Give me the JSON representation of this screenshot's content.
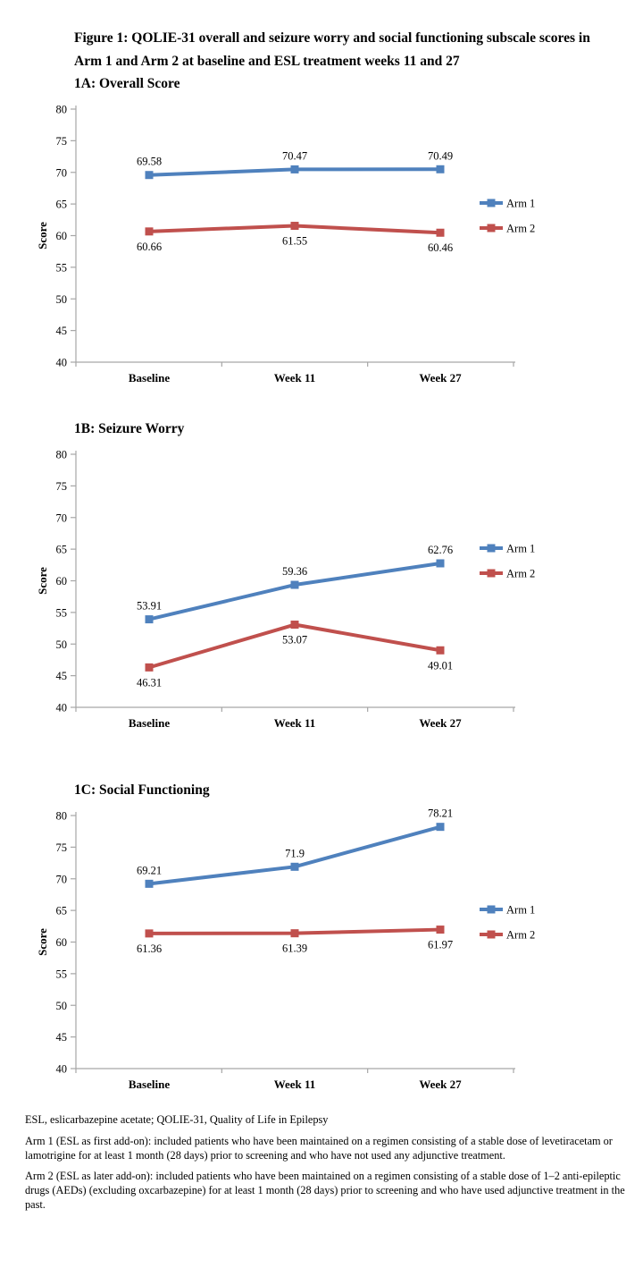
{
  "figure_title": "Figure 1: QOLIE-31 overall and seizure worry and social functioning subscale scores in Arm 1 and Arm 2 at baseline and ESL treatment weeks 11 and 27",
  "colors": {
    "arm1": "#4f81bd",
    "arm2": "#c0504d",
    "axis": "#a6a6a6",
    "text": "#000000"
  },
  "chart_data": [
    {
      "type": "line",
      "title": "1A: Overall Score",
      "categories": [
        "Baseline",
        "Week 11",
        "Week 27"
      ],
      "xlabel": "",
      "ylabel": "Score",
      "ylim": [
        40,
        80
      ],
      "ytick_step": 5,
      "grid": false,
      "legend_position": "right",
      "series": [
        {
          "name": "Arm 1",
          "color": "#4f81bd",
          "values": [
            69.58,
            70.47,
            70.49
          ],
          "labels": [
            "69.58",
            "70.47",
            "70.49"
          ],
          "label_side": "above"
        },
        {
          "name": "Arm 2",
          "color": "#c0504d",
          "values": [
            60.66,
            61.55,
            60.46
          ],
          "labels": [
            "60.66",
            "61.55",
            "60.46"
          ],
          "label_side": "below"
        }
      ]
    },
    {
      "type": "line",
      "title": "1B: Seizure Worry",
      "categories": [
        "Baseline",
        "Week 11",
        "Week 27"
      ],
      "xlabel": "",
      "ylabel": "Score",
      "ylim": [
        40,
        80
      ],
      "ytick_step": 5,
      "grid": false,
      "legend_position": "right",
      "series": [
        {
          "name": "Arm 1",
          "color": "#4f81bd",
          "values": [
            53.91,
            59.36,
            62.76
          ],
          "labels": [
            "53.91",
            "59.36",
            "62.76"
          ],
          "label_side": "above"
        },
        {
          "name": "Arm 2",
          "color": "#c0504d",
          "values": [
            46.31,
            53.07,
            49.01
          ],
          "labels": [
            "46.31",
            "53.07",
            "49.01"
          ],
          "label_side": "below"
        }
      ]
    },
    {
      "type": "line",
      "title": "1C: Social Functioning",
      "categories": [
        "Baseline",
        "Week 11",
        "Week 27"
      ],
      "xlabel": "",
      "ylabel": "Score",
      "ylim": [
        40,
        80
      ],
      "ytick_step": 5,
      "grid": false,
      "legend_position": "right",
      "series": [
        {
          "name": "Arm 1",
          "color": "#4f81bd",
          "values": [
            69.21,
            71.9,
            78.21
          ],
          "labels": [
            "69.21",
            "71.9",
            "78.21"
          ],
          "label_side": "above"
        },
        {
          "name": "Arm 2",
          "color": "#c0504d",
          "values": [
            61.36,
            61.39,
            61.97
          ],
          "labels": [
            "61.36",
            "61.39",
            "61.97"
          ],
          "label_side": "below"
        }
      ]
    }
  ],
  "footnotes": [
    "ESL, eslicarbazepine acetate; QOLIE-31, Quality of Life in Epilepsy",
    "Arm 1 (ESL as first add-on): included patients who have been maintained on a regimen consisting of a stable dose of levetiracetam or lamotrigine for at least 1 month (28 days) prior to screening and who have not used any adjunctive treatment.",
    "Arm 2 (ESL as later add-on): included patients who have been maintained on a regimen consisting of a stable dose of 1–2 anti-epileptic drugs (AEDs) (excluding oxcarbazepine) for at least 1 month (28 days) prior to screening and who have used adjunctive treatment in the past."
  ]
}
